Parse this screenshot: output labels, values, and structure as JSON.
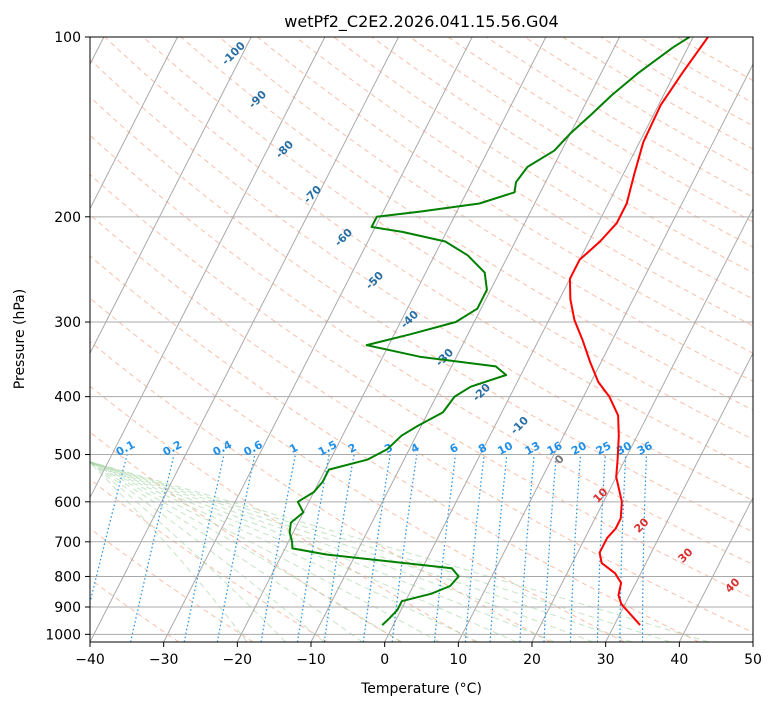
{
  "chart_data": {
    "type": "line",
    "title": "wetPf2_C2E2.2026.041.15.56.G04",
    "xlabel": "Temperature (°C)",
    "ylabel": "Pressure (hPa)",
    "xlim": [
      -40,
      50
    ],
    "ylim": [
      1030,
      100
    ],
    "y_scale": "log",
    "grid": true,
    "x_ticks": [
      -40,
      -30,
      -20,
      -10,
      0,
      10,
      20,
      30,
      40,
      50
    ],
    "y_ticks": [
      100,
      200,
      300,
      400,
      500,
      600,
      700,
      800,
      900,
      1000
    ],
    "series": [
      {
        "name": "",
        "color": "#ff0000",
        "points": [
          [
            33.5,
            965
          ],
          [
            29.5,
            890
          ],
          [
            28.5,
            860
          ],
          [
            28,
            820
          ],
          [
            26.5,
            790
          ],
          [
            24,
            760
          ],
          [
            23,
            730
          ],
          [
            23,
            690
          ],
          [
            23.5,
            665
          ],
          [
            23.5,
            640
          ],
          [
            22.5,
            600
          ],
          [
            20,
            545
          ],
          [
            19,
            510
          ],
          [
            17.5,
            465
          ],
          [
            16,
            430
          ],
          [
            13.5,
            400
          ],
          [
            11,
            378
          ],
          [
            8.5,
            350
          ],
          [
            6,
            322
          ],
          [
            3.5,
            298
          ],
          [
            1.5,
            275
          ],
          [
            0,
            254
          ],
          [
            0,
            236
          ],
          [
            1.5,
            220
          ],
          [
            2.5,
            205
          ],
          [
            2.5,
            190
          ],
          [
            1.5,
            170
          ],
          [
            0.5,
            150
          ],
          [
            0.3,
            130
          ],
          [
            1,
            115
          ],
          [
            2,
            100
          ]
        ]
      },
      {
        "name": "",
        "color": "#008000",
        "points": [
          [
            -1.5,
            965
          ],
          [
            -1,
            940
          ],
          [
            -0.5,
            910
          ],
          [
            -0.5,
            880
          ],
          [
            3,
            855
          ],
          [
            5,
            830
          ],
          [
            5.5,
            800
          ],
          [
            4,
            775
          ],
          [
            -5,
            755
          ],
          [
            -14,
            735
          ],
          [
            -19,
            718
          ],
          [
            -19.5,
            700
          ],
          [
            -20.5,
            675
          ],
          [
            -21,
            650
          ],
          [
            -20,
            625
          ],
          [
            -21.5,
            600
          ],
          [
            -20,
            578
          ],
          [
            -19.5,
            555
          ],
          [
            -19.5,
            530
          ],
          [
            -15,
            510
          ],
          [
            -13,
            490
          ],
          [
            -12,
            465
          ],
          [
            -10.5,
            448
          ],
          [
            -8,
            425
          ],
          [
            -7.5,
            400
          ],
          [
            -6,
            385
          ],
          [
            -2,
            368
          ],
          [
            -4,
            356
          ],
          [
            -15,
            343
          ],
          [
            -23,
            328
          ],
          [
            -18,
            315
          ],
          [
            -12.5,
            300
          ],
          [
            -10.5,
            285
          ],
          [
            -10.5,
            265
          ],
          [
            -12,
            248
          ],
          [
            -15.5,
            232
          ],
          [
            -19.5,
            220
          ],
          [
            -26,
            212
          ],
          [
            -30.5,
            208
          ],
          [
            -30.5,
            200
          ],
          [
            -25,
            196
          ],
          [
            -17.5,
            190
          ],
          [
            -13.5,
            182
          ],
          [
            -14,
            175
          ],
          [
            -13.5,
            165
          ],
          [
            -11,
            155
          ],
          [
            -10,
            145
          ],
          [
            -8.5,
            135
          ],
          [
            -7,
            125
          ],
          [
            -5,
            115
          ],
          [
            -2,
            104
          ],
          [
            -0.5,
            100
          ]
        ]
      }
    ],
    "dry_adiabat_labels": [
      "-100",
      "-90",
      "-80",
      "-70",
      "-60",
      "-50",
      "-40",
      "-30",
      "-20",
      "-10",
      "0",
      "10",
      "20",
      "30",
      "40"
    ],
    "mixing_ratio_labels": [
      "0.1",
      "0.2",
      "0.4",
      "0.6",
      "1",
      "1.5",
      "2",
      "3",
      "4",
      "6",
      "8",
      "10",
      "13",
      "16",
      "20",
      "25",
      "30",
      "36"
    ]
  },
  "colors": {
    "temperature": "#ff0000",
    "dewpoint": "#008000",
    "dry_adiabat_label": "#2a6fa3",
    "moist_label": "#d93030",
    "mixing_ratio": "#1f8fe8",
    "isotherm_grid": "#aaaaaa"
  }
}
